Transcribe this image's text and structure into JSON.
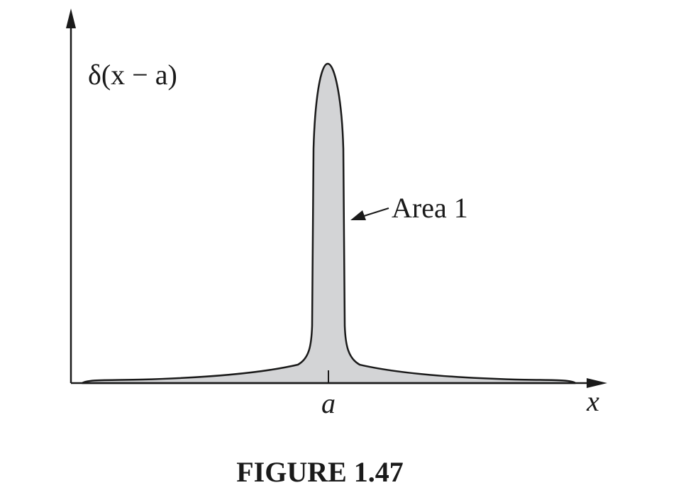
{
  "figure": {
    "y_axis_label": "δ(x − a)",
    "x_axis_label": "x",
    "peak_tick_label": "a",
    "annotation": "Area 1",
    "caption": "FIGURE 1.47",
    "colors": {
      "fill": "#d3d4d6",
      "stroke": "#1a1a1a",
      "background": "#ffffff"
    }
  }
}
